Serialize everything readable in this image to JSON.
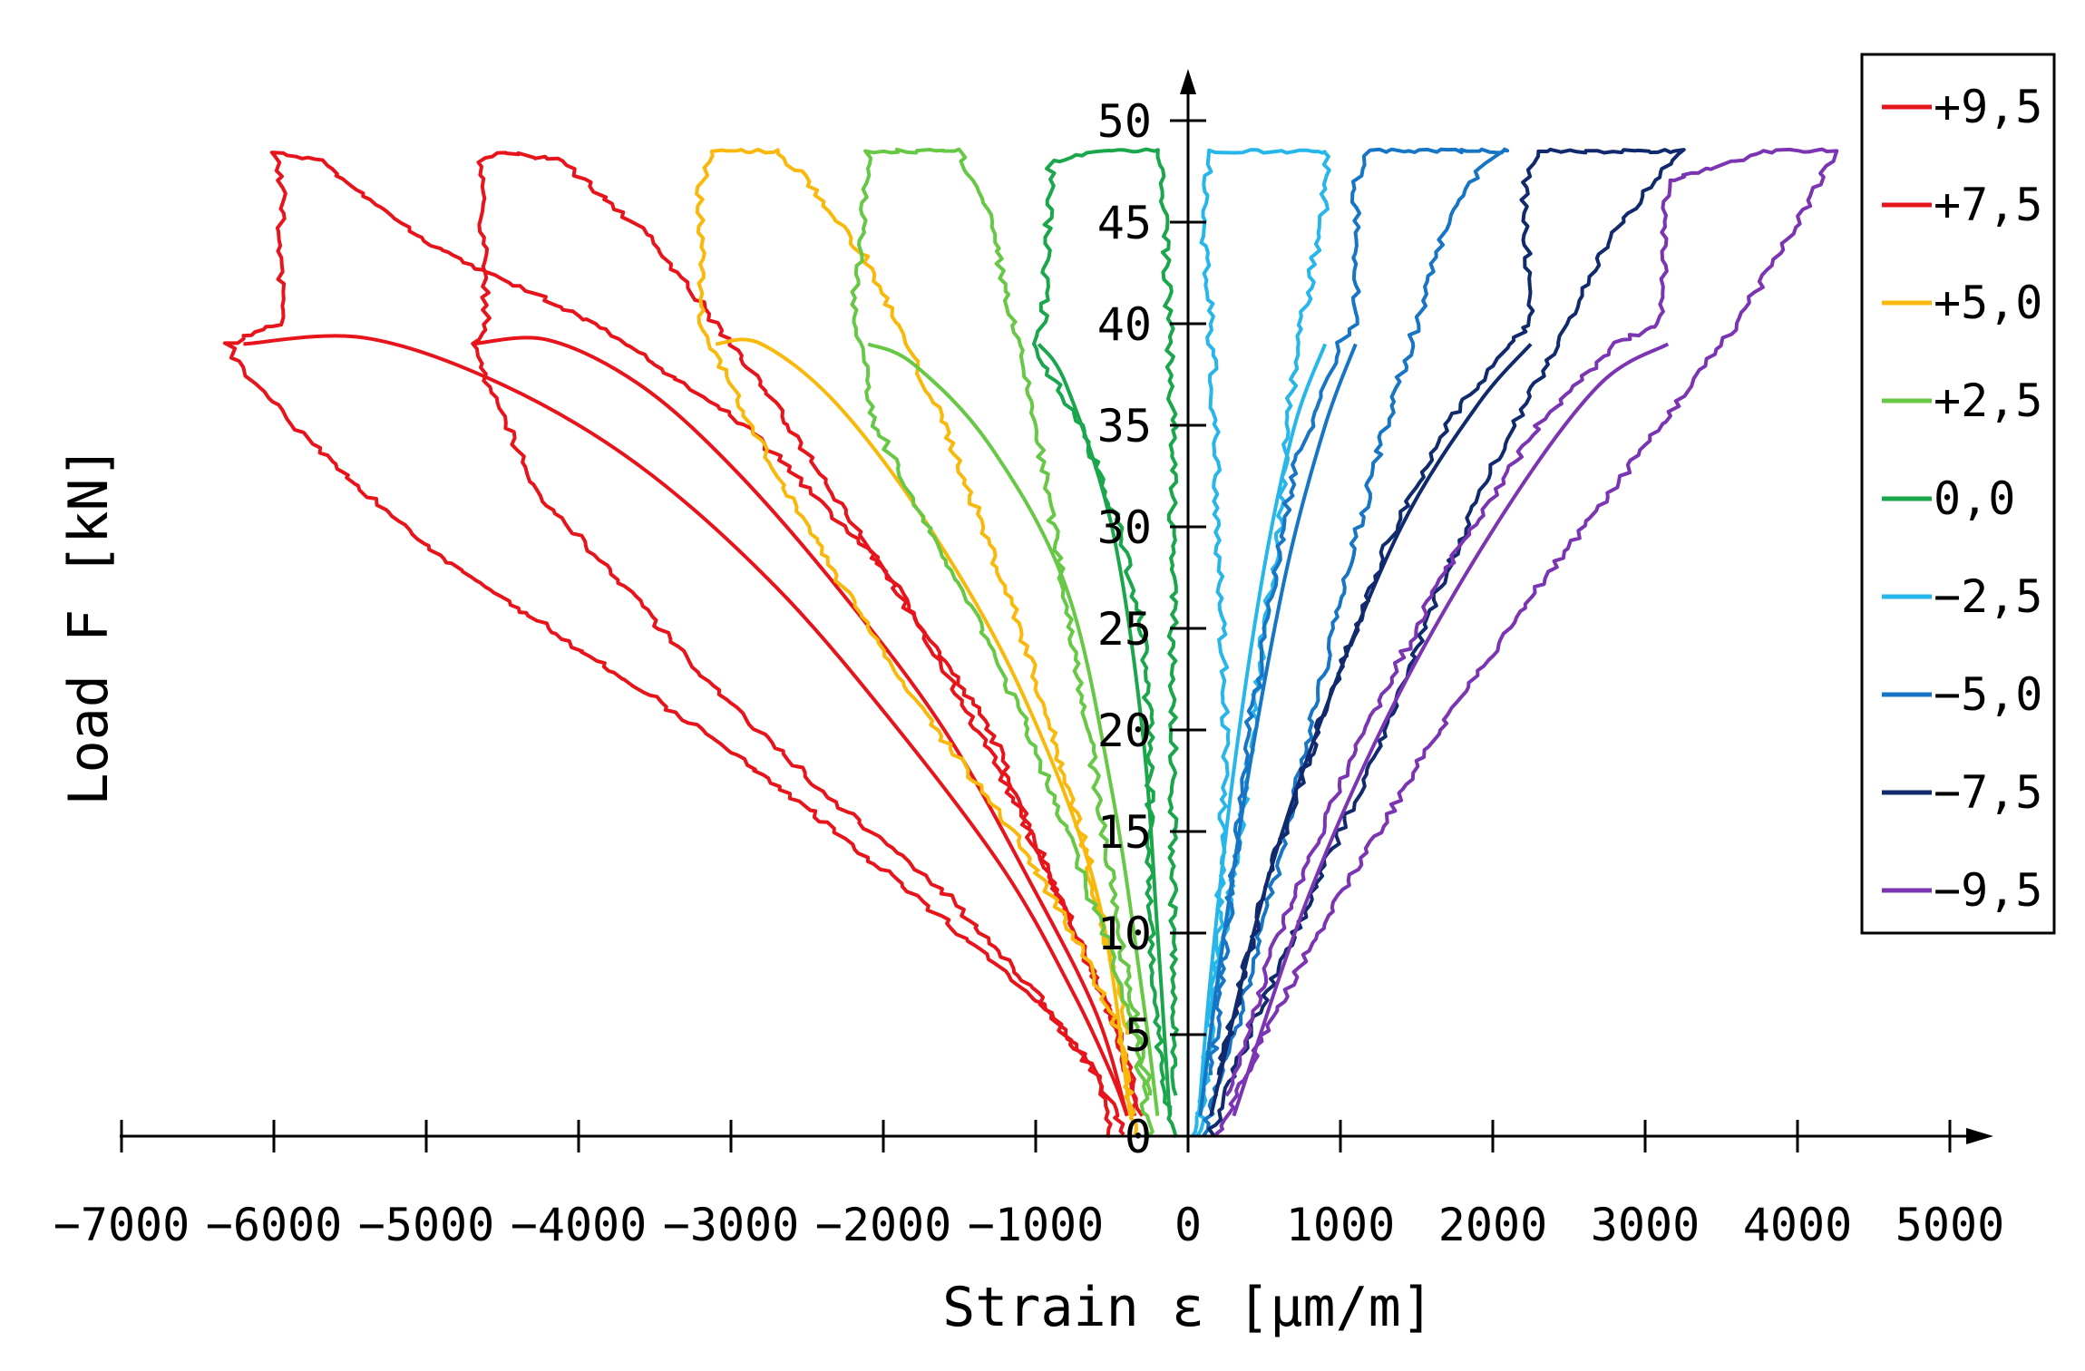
{
  "chart_data": {
    "type": "line",
    "title": "",
    "xlabel": "Strain ε [µm/m]",
    "ylabel": "Load F [kN]",
    "xlim": [
      -7000,
      5000
    ],
    "ylim": [
      0,
      50
    ],
    "x_ticks": [
      -7000,
      -6000,
      -5000,
      -4000,
      -3000,
      -2000,
      -1000,
      0,
      1000,
      2000,
      3000,
      4000,
      5000
    ],
    "x_tick_labels": [
      "−7000",
      "−6000",
      "−5000",
      "−4000",
      "−3000",
      "−2000",
      "−1000",
      "0",
      "1000",
      "2000",
      "3000",
      "4000",
      "5000"
    ],
    "y_ticks": [
      0,
      5,
      10,
      15,
      20,
      25,
      30,
      35,
      40,
      45,
      50
    ],
    "y_tick_labels": [
      "0",
      "5",
      "10",
      "15",
      "20",
      "25",
      "30",
      "35",
      "40",
      "45",
      "50"
    ],
    "grid": false,
    "legend_position": "top-right",
    "series": [
      {
        "name": "+9,5",
        "color": "#e8141c",
        "loading": {
          "x": [
            -500,
            -600,
            -900,
            -1500,
            -2300,
            -3200,
            -4200,
            -5000,
            -5600,
            -6200,
            -6300,
            -5950,
            -5950,
            -6000,
            -5700,
            -5000,
            -3900,
            -2900,
            -2000,
            -1300,
            -800,
            -450,
            -350
          ],
          "y": [
            0,
            3,
            6,
            10,
            15,
            20,
            25,
            29,
            33,
            37.5,
            39,
            40,
            47,
            48.5,
            48,
            44,
            40,
            35,
            28,
            20,
            11,
            5,
            1
          ]
        },
        "unloading": {
          "x": [
            -6200,
            -5400,
            -4500,
            -3600,
            -2700,
            -1900,
            -1200,
            -750,
            -500,
            -400
          ],
          "y": [
            39,
            39.3,
            37,
            33,
            27,
            20,
            13,
            7,
            3,
            1
          ]
        }
      },
      {
        "name": "+7,5",
        "color": "#e8141c",
        "loading": {
          "x": [
            -400,
            -600,
            -1000,
            -1600,
            -2400,
            -3100,
            -3700,
            -4300,
            -4700,
            -4600,
            -4650,
            -4500,
            -4100,
            -3500,
            -2800,
            -2000,
            -1300,
            -800,
            -450,
            -300
          ],
          "y": [
            0,
            3,
            7,
            12,
            17,
            22,
            27,
            32,
            39,
            40,
            48,
            48.5,
            48,
            44,
            37,
            28,
            19,
            11,
            5,
            1
          ]
        },
        "unloading": {
          "x": [
            -4700,
            -4200,
            -3600,
            -3000,
            -2300,
            -1600,
            -1000,
            -600,
            -400
          ],
          "y": [
            39,
            39.2,
            37,
            33,
            27,
            20,
            12,
            6,
            1
          ]
        }
      },
      {
        "name": "+5,0",
        "color": "#f9b90c",
        "loading": {
          "x": [
            -350,
            -450,
            -750,
            -1150,
            -1650,
            -2100,
            -2500,
            -2800,
            -3100,
            -3200,
            -3200,
            -3100,
            -2700,
            -2500,
            -2100,
            -1600,
            -1100,
            -700,
            -400
          ],
          "y": [
            0,
            5,
            10,
            15,
            20,
            25,
            30,
            34,
            38.5,
            40,
            47,
            48.5,
            48.5,
            47,
            43,
            35,
            25,
            15,
            5
          ]
        },
        "unloading": {
          "x": [
            -3100,
            -2800,
            -2300,
            -1700,
            -1100,
            -600,
            -380
          ],
          "y": [
            39,
            39,
            36,
            30,
            22,
            12,
            1
          ]
        }
      },
      {
        "name": "+2,5",
        "color": "#67c846",
        "loading": {
          "x": [
            -250,
            -350,
            -550,
            -800,
            -1050,
            -1350,
            -1700,
            -2050,
            -2150,
            -2200,
            -2100,
            -1500,
            -1300,
            -1000,
            -700,
            -450,
            -250
          ],
          "y": [
            0,
            5,
            10,
            15,
            20,
            25,
            30,
            35,
            38.8,
            40,
            48.5,
            48.5,
            45,
            35,
            22,
            10,
            2
          ]
        },
        "unloading": {
          "x": [
            -2100,
            -1800,
            -1300,
            -800,
            -500,
            -300,
            -200
          ],
          "y": [
            39,
            38,
            34,
            27,
            17,
            7,
            1
          ]
        }
      },
      {
        "name": "0,0",
        "color": "#1aa64a",
        "loading": {
          "x": [
            -100,
            -150,
            -200,
            -250,
            -250,
            -250,
            -300,
            -450,
            -700,
            -950,
            -1000,
            -950,
            -900,
            -600,
            -200,
            -150,
            -100,
            -100,
            -100,
            -80
          ],
          "y": [
            0,
            2,
            5,
            10,
            15,
            20,
            25,
            30,
            35,
            38,
            39,
            40,
            48,
            48.5,
            48.5,
            45,
            35,
            20,
            8,
            2
          ]
        },
        "unloading": {
          "x": [
            -980,
            -800,
            -500,
            -300,
            -200,
            -120
          ],
          "y": [
            39,
            37,
            30,
            20,
            10,
            1
          ]
        }
      },
      {
        "name": "−2,5",
        "color": "#27b6ea",
        "loading": {
          "x": [
            50,
            100,
            200,
            350,
            450,
            600,
            650,
            750,
            900,
            900,
            900,
            600,
            150,
            100,
            150,
            200,
            250,
            200,
            120,
            60
          ],
          "y": [
            0,
            3,
            8,
            15,
            22,
            30,
            35,
            40,
            46,
            48.5,
            48.5,
            48.5,
            48.5,
            45,
            40,
            30,
            20,
            10,
            3,
            0
          ]
        },
        "unloading": {
          "x": [
            900,
            700,
            500,
            300,
            150,
            70
          ],
          "y": [
            39,
            35,
            28,
            18,
            8,
            1
          ]
        }
      },
      {
        "name": "−5,0",
        "color": "#1775c5",
        "loading": {
          "x": [
            100,
            300,
            550,
            800,
            1050,
            1300,
            1500,
            1700,
            1900,
            2050,
            2100,
            1200,
            1100,
            1100,
            1000,
            700,
            400,
            150
          ],
          "y": [
            0,
            5,
            12,
            20,
            28,
            35,
            40,
            45,
            47.5,
            48.5,
            48.5,
            48.5,
            47,
            40,
            39,
            33,
            20,
            3
          ]
        },
        "unloading": {
          "x": [
            1100,
            900,
            650,
            400,
            200,
            80
          ],
          "y": [
            39,
            35,
            28,
            18,
            8,
            1
          ]
        }
      },
      {
        "name": "−7,5",
        "color": "#102a6d",
        "loading": {
          "x": [
            150,
            400,
            700,
            1000,
            1300,
            1650,
            2000,
            2350,
            2750,
            3100,
            3250,
            2300,
            2200,
            2250,
            2100,
            1700,
            1300,
            900,
            500,
            200
          ],
          "y": [
            0,
            5,
            10,
            15,
            20,
            27,
            33,
            38,
            44,
            47.5,
            48.5,
            48.5,
            47,
            40,
            39,
            35,
            29,
            21,
            12,
            3
          ]
        },
        "unloading": {
          "x": [
            2250,
            1900,
            1400,
            900,
            500,
            150
          ],
          "y": [
            39,
            36,
            30,
            21,
            12,
            1
          ]
        }
      },
      {
        "name": "−9,5",
        "color": "#7b35b2",
        "loading": {
          "x": [
            200,
            500,
            850,
            1250,
            1650,
            2100,
            2600,
            3100,
            3600,
            4000,
            4250,
            3800,
            3150,
            3100,
            2800,
            2300,
            1700,
            1100,
            600,
            250
          ],
          "y": [
            0,
            5,
            10,
            15,
            20,
            25,
            30,
            35,
            40,
            45,
            48.5,
            48.5,
            47,
            40,
            39,
            35,
            28,
            19,
            10,
            2
          ]
        },
        "unloading": {
          "x": [
            3150,
            2700,
            2100,
            1400,
            800,
            300
          ],
          "y": [
            39,
            37,
            31,
            22,
            12,
            1
          ]
        }
      }
    ]
  }
}
